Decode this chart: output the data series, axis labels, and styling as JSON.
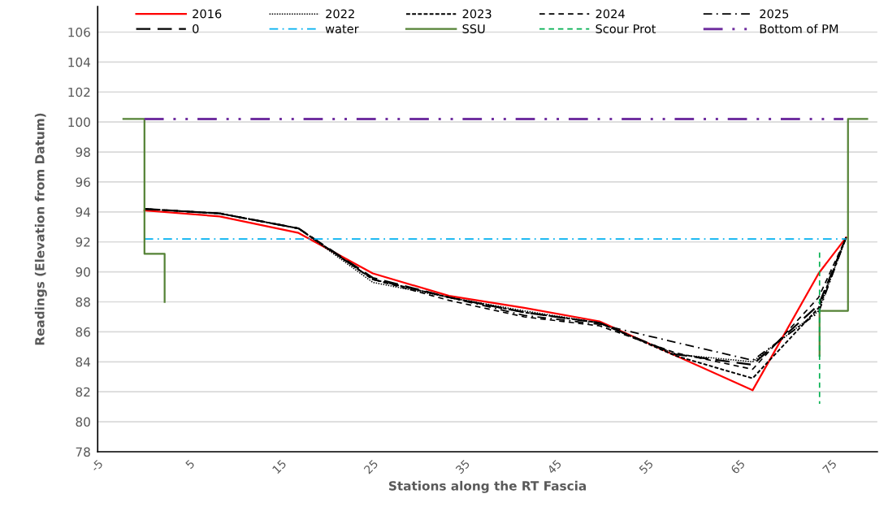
{
  "chart_data": {
    "type": "line",
    "xlabel": "Stations along the RT Fascia",
    "ylabel": "Readings (Elevation from Datum)",
    "xlim": [
      -5,
      80
    ],
    "xticks": [
      -5,
      5,
      15,
      25,
      35,
      45,
      55,
      65,
      75
    ],
    "ylim": [
      78,
      107.7
    ],
    "yticks": [
      78,
      80,
      82,
      84,
      86,
      88,
      90,
      92,
      94,
      96,
      98,
      100,
      102,
      104,
      106
    ],
    "grid": "y",
    "legend": "top",
    "marker": "none",
    "series": [
      {
        "name": "2016",
        "color": "#ff0000",
        "line_style": "solid",
        "x": [
          0.1,
          8.3,
          16.9,
          25,
          33.3,
          41.5,
          49.7,
          66.4,
          73.6,
          76.6
        ],
        "values": [
          94.1,
          93.7,
          92.6,
          89.9,
          88.4,
          87.6,
          86.7,
          82.1,
          89.9,
          92.3
        ]
      },
      {
        "name": "2022",
        "color": "#000000",
        "line_style": "dotted",
        "x": [
          0.1,
          8.3,
          16.9,
          25,
          33.3,
          41.5,
          49.7,
          58,
          66.4,
          73.6,
          76.6
        ],
        "values": [
          94.2,
          93.9,
          92.9,
          89.3,
          88.3,
          87.4,
          86.6,
          84.5,
          84.0,
          87.4,
          92.3
        ]
      },
      {
        "name": "2023",
        "color": "#000000",
        "line_style": "densedash",
        "x": [
          0.1,
          8.3,
          16.9,
          25,
          33.3,
          41.5,
          49.7,
          58,
          66.4,
          73.6,
          76.6
        ],
        "values": [
          94.2,
          93.9,
          92.9,
          89.5,
          88.3,
          87.3,
          86.6,
          84.4,
          82.9,
          87.6,
          92.3
        ]
      },
      {
        "name": "2024",
        "color": "#000000",
        "line_style": "dashed",
        "x": [
          0.1,
          8.3,
          16.9,
          25,
          33.3,
          41.5,
          49.7,
          58,
          66.4,
          73.6,
          76.6
        ],
        "values": [
          94.2,
          93.9,
          92.9,
          89.5,
          88.1,
          87.0,
          86.4,
          84.6,
          83.5,
          88.3,
          92.3
        ]
      },
      {
        "name": "2025",
        "color": "#000000",
        "line_style": "dashdot",
        "x": [
          0.1,
          8.3,
          16.9,
          25,
          33.3,
          41.5,
          49.7,
          58,
          66.4,
          73.6,
          76.6
        ],
        "values": [
          94.2,
          93.9,
          92.9,
          89.5,
          88.3,
          87.1,
          86.5,
          85.3,
          84.1,
          87.3,
          92.3
        ]
      },
      {
        "name": "0",
        "color": "#000000",
        "line_style": "longdash",
        "x": [
          0.1,
          8.3,
          16.9,
          25,
          33.3,
          41.5,
          49.7,
          58,
          66.4,
          73.6,
          76.6
        ],
        "values": [
          94.2,
          93.9,
          92.9,
          89.6,
          88.3,
          87.3,
          86.6,
          84.5,
          83.8,
          87.8,
          92.3
        ]
      },
      {
        "name": "water",
        "color": "#00b0f0",
        "line_style": "dashdot",
        "x": [
          0.1,
          76.6
        ],
        "values": [
          92.2,
          92.2
        ]
      },
      {
        "name": "SSU",
        "color": "#548235",
        "line_style": "solid",
        "x": [
          -2.2,
          0.1,
          0.1,
          2.3,
          2.3,
          40,
          73.7,
          73.7,
          76.8,
          76.8,
          78.9
        ],
        "values": [
          100.2,
          100.2,
          91.2,
          91.2,
          88.0,
          null,
          84.4,
          87.4,
          87.4,
          100.2,
          100.2
        ]
      },
      {
        "name": "Scour Prot",
        "color": "#00b050",
        "line_style": "dashed",
        "x": [
          73.7,
          73.7
        ],
        "values": [
          91.3,
          81.2
        ]
      },
      {
        "name": "Bottom of PM",
        "color": "#7030a0",
        "line_style": "dashdotdot",
        "x": [
          0.1,
          76.3
        ],
        "values": [
          100.2,
          100.2
        ]
      }
    ]
  }
}
